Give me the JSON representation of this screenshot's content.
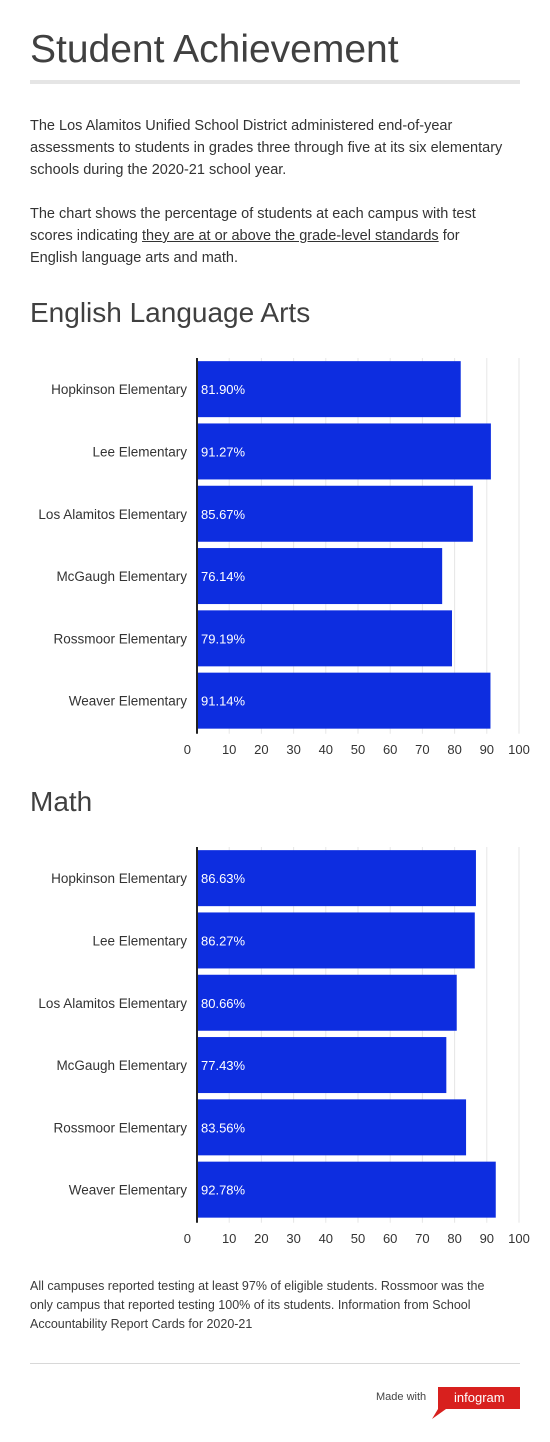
{
  "page": {
    "title": "Student Achievement",
    "intro_1": "The Los Alamitos Unified School District administered end-of-year assessments to students in grades three through five at its six elementary schools during the 2020-21 school year.",
    "intro_2_before": "The chart shows the percentage of students at each campus with test scores indicating ",
    "intro_2_link": "they are at or above the grade-level standards",
    "intro_2_after": " for English language arts and math.",
    "footnote": "All campuses reported testing at least 97% of eligible students. Rossmoor was the only campus that reported testing 100% of its students. Information from School Accountability Report Cards for 2020-21",
    "made_with": "Made with",
    "brand": "infogram"
  },
  "colors": {
    "bar": "#0d2de0",
    "bar_label": "#ffffff",
    "grid": "#e6e6e6",
    "axis": "#222222",
    "brand_red": "#d8201e"
  },
  "chart_data": [
    {
      "type": "bar",
      "orientation": "horizontal",
      "title": "English Language Arts",
      "categories": [
        "Hopkinson Elementary",
        "Lee Elementary",
        "Los Alamitos Elementary",
        "McGaugh Elementary",
        "Rossmoor Elementary",
        "Weaver Elementary"
      ],
      "values": [
        81.9,
        91.27,
        85.67,
        76.14,
        79.19,
        91.14
      ],
      "value_labels": [
        "81.90%",
        "91.27%",
        "85.67%",
        "76.14%",
        "79.19%",
        "91.14%"
      ],
      "xlim": [
        0,
        100
      ],
      "xticks": [
        "0",
        "10",
        "20",
        "30",
        "40",
        "50",
        "60",
        "70",
        "80",
        "90",
        "100"
      ],
      "grid": true
    },
    {
      "type": "bar",
      "orientation": "horizontal",
      "title": "Math",
      "categories": [
        "Hopkinson Elementary",
        "Lee Elementary",
        "Los Alamitos Elementary",
        "McGaugh Elementary",
        "Rossmoor Elementary",
        "Weaver Elementary"
      ],
      "values": [
        86.63,
        86.27,
        80.66,
        77.43,
        83.56,
        92.78
      ],
      "value_labels": [
        "86.63%",
        "86.27%",
        "80.66%",
        "77.43%",
        "83.56%",
        "92.78%"
      ],
      "xlim": [
        0,
        100
      ],
      "xticks": [
        "0",
        "10",
        "20",
        "30",
        "40",
        "50",
        "60",
        "70",
        "80",
        "90",
        "100"
      ],
      "grid": true
    }
  ]
}
